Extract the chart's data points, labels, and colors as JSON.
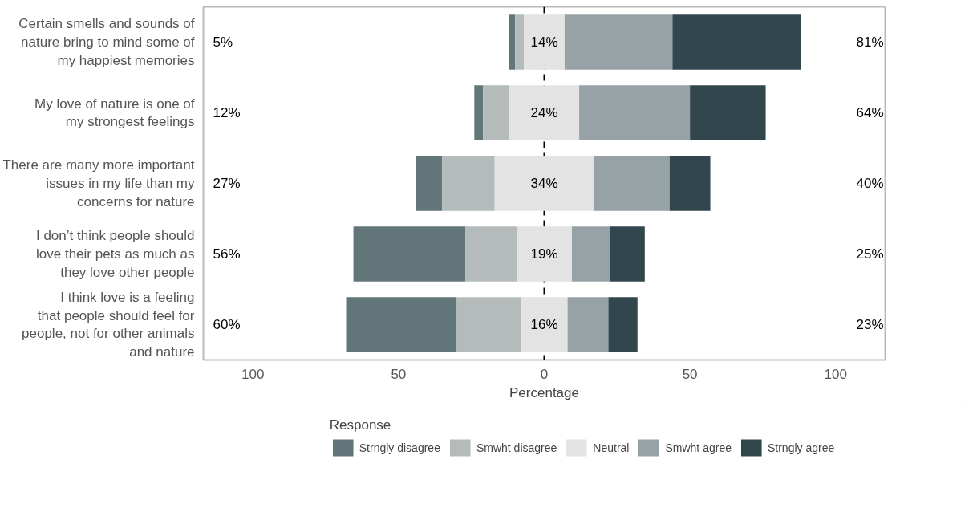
{
  "chart_data": {
    "type": "bar",
    "orientation": "horizontal",
    "xlabel": "Percentage",
    "legend_title": "Response",
    "legend": "bottom",
    "grid": false,
    "categories": [
      "Certain smells and sounds of\nnature bring to mind some of\nmy happiest memories",
      "My love of nature is one of\nmy strongest feelings",
      "There are many more important\nissues in my life than my\nconcerns for nature",
      "I don’t think people should\nlove their pets as much as\nthey love other people",
      "I think love is a feeling\nthat people should feel for\npeople, not for other animals\nand nature"
    ],
    "xlim": [
      -117,
      117
    ],
    "xticks": [
      {
        "value": -100,
        "label": "100"
      },
      {
        "value": -50,
        "label": "50"
      },
      0,
      50,
      100
    ],
    "series": [
      {
        "name": "Strngly disagree",
        "color": "#62767a",
        "values": [
          2,
          3,
          9,
          38.5,
          38
        ],
        "base": [
          -12,
          -24,
          -44,
          -65.5,
          -68
        ]
      },
      {
        "name": "Smwht disagree",
        "color": "#b5bbbb",
        "values": [
          3,
          9,
          18,
          17.5,
          22
        ],
        "base": [
          -10,
          -21,
          -35,
          -27,
          -30
        ]
      },
      {
        "name": "Neutral",
        "color": "#e3e3e3",
        "values": [
          14,
          24,
          34,
          19,
          16
        ],
        "base": [
          -7,
          -12,
          -17,
          -9.5,
          -8
        ],
        "value_labels": [
          "14%",
          "24%",
          "34%",
          "19%",
          "16%"
        ]
      },
      {
        "name": "Smwht agree",
        "color": "#97a2a6",
        "values": [
          37,
          38,
          26,
          13,
          14
        ],
        "base": [
          7,
          12,
          17,
          9.5,
          8
        ]
      },
      {
        "name": "Strngly agree",
        "color": "#32474d",
        "values": [
          44,
          26,
          14,
          12,
          10
        ],
        "base": [
          44,
          50,
          43,
          22.5,
          22
        ]
      }
    ],
    "ref_lines": [
      {
        "axis": "x",
        "value": 0,
        "color": "#000000",
        "line_style": "dashed"
      }
    ],
    "annotations": [
      "5%",
      "12%",
      "27%",
      "56%",
      "60%",
      "81%",
      "64%",
      "40%",
      "25%",
      "23%"
    ]
  }
}
